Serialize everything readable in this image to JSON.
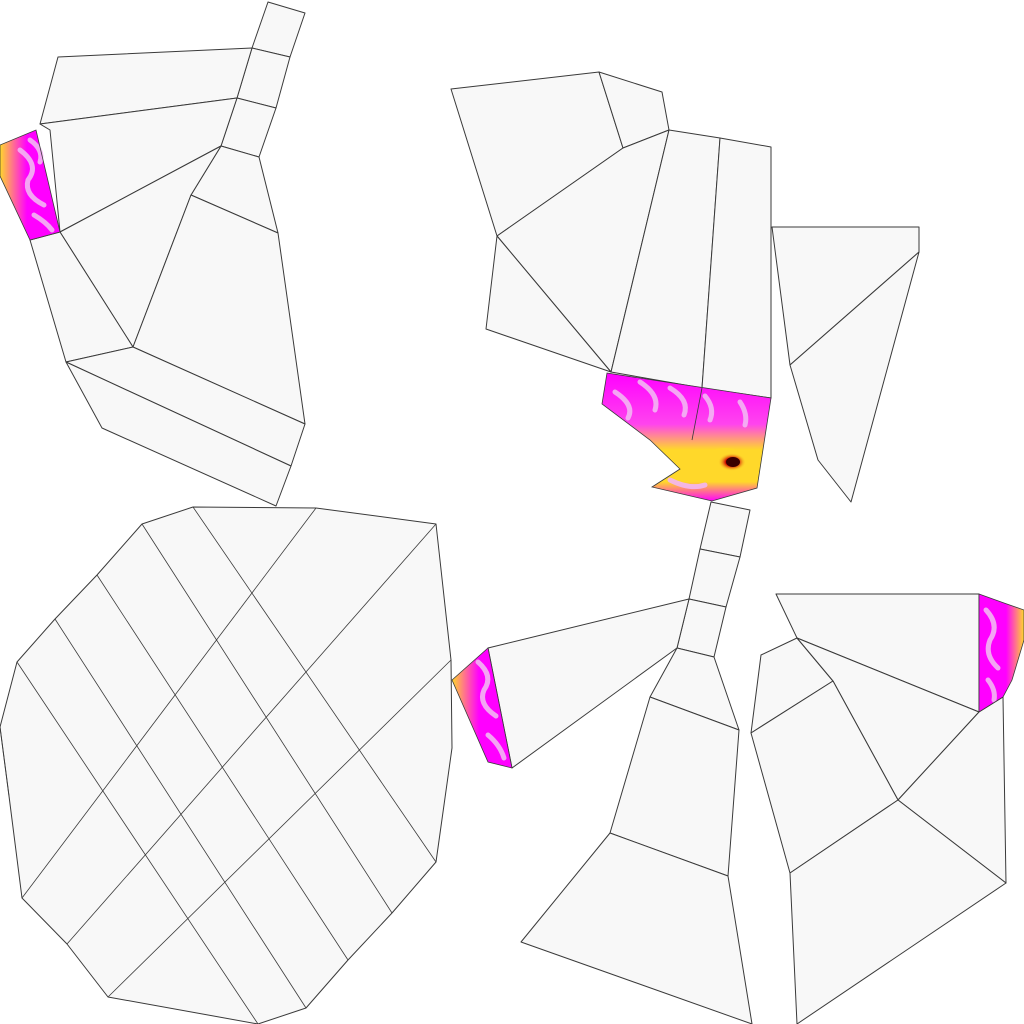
{
  "texture": {
    "background_color": "#ffffff",
    "face_fill_color": "#f8f8f8",
    "edge_color": "#3a3a3a",
    "paint_colors": {
      "magenta": "#ff00ff",
      "light_pink": "#f3b6f3",
      "yellow": "#ffd82a",
      "red": "#cc0000",
      "dark_red": "#3a0000"
    }
  }
}
